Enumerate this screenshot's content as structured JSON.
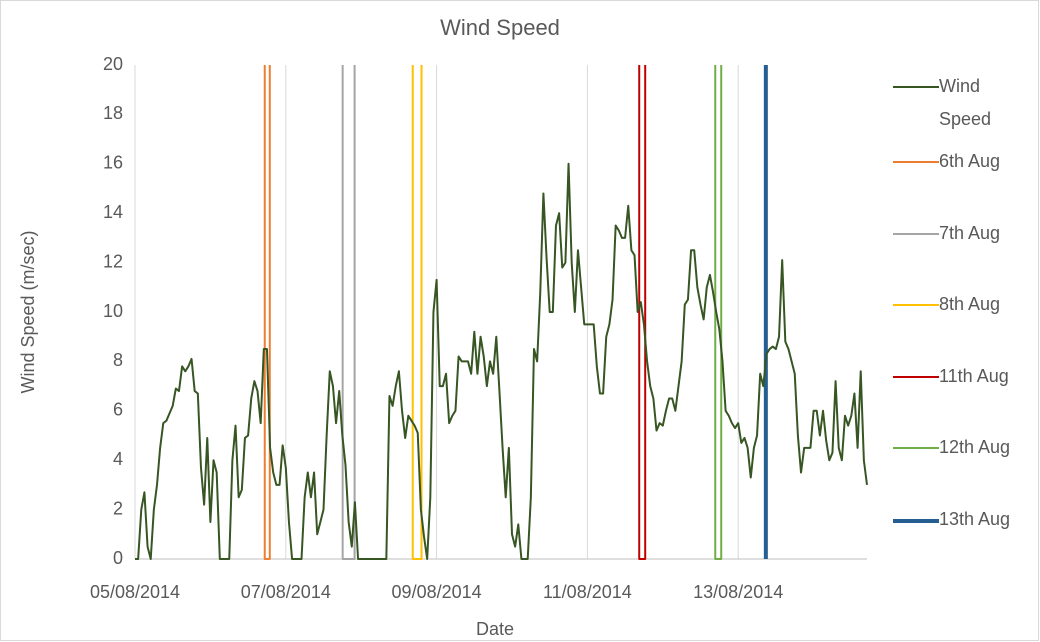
{
  "chart_data": {
    "type": "line",
    "title": "Wind Speed",
    "x_label": "Date",
    "y_label": "Wind Speed (m/sec)",
    "xlim": [
      0,
      233
    ],
    "xticks": [
      {
        "value": 0,
        "label": "05/08/2014"
      },
      {
        "value": 48,
        "label": "07/08/2014"
      },
      {
        "value": 96,
        "label": "09/08/2014"
      },
      {
        "value": 144,
        "label": "11/08/2014"
      },
      {
        "value": 192,
        "label": "13/08/2014"
      }
    ],
    "ylim": [
      0,
      20
    ],
    "yticks": [
      0,
      2,
      4,
      6,
      8,
      10,
      12,
      14,
      16,
      18,
      20
    ],
    "grid": true,
    "legend": "right",
    "series": [
      {
        "name": "Wind Speed",
        "color": "#375623",
        "width": 2,
        "x": [
          0,
          1,
          2,
          3,
          4,
          5,
          6,
          7,
          8,
          9,
          10,
          11,
          12,
          13,
          14,
          15,
          16,
          17,
          18,
          19,
          20,
          21,
          22,
          23,
          24,
          25,
          26,
          27,
          28,
          29,
          30,
          31,
          32,
          33,
          34,
          35,
          36,
          37,
          38,
          39,
          40,
          41,
          42,
          43,
          44,
          45,
          46,
          47,
          48,
          49,
          50,
          51,
          52,
          53,
          54,
          55,
          56,
          57,
          58,
          59,
          60,
          61,
          62,
          63,
          64,
          65,
          66,
          67,
          68,
          69,
          70,
          71,
          72,
          73,
          74,
          75,
          76,
          77,
          78,
          79,
          80,
          81,
          82,
          83,
          84,
          85,
          86,
          87,
          88,
          89,
          90,
          91,
          92,
          93,
          94,
          95,
          96,
          97,
          98,
          99,
          100,
          101,
          102,
          103,
          104,
          105,
          106,
          107,
          108,
          109,
          110,
          111,
          112,
          113,
          114,
          115,
          116,
          117,
          118,
          119,
          120,
          121,
          122,
          123,
          124,
          125,
          126,
          127,
          128,
          129,
          130,
          131,
          132,
          133,
          134,
          135,
          136,
          137,
          138,
          139,
          140,
          141,
          142,
          143,
          144,
          145,
          146,
          147,
          148,
          149,
          150,
          151,
          152,
          153,
          154,
          155,
          156,
          157,
          158,
          159,
          160,
          161,
          162,
          163,
          164,
          165,
          166,
          167,
          168,
          169,
          170,
          171,
          172,
          173,
          174,
          175,
          176,
          177,
          178,
          179,
          180,
          181,
          182,
          183,
          184,
          185,
          186,
          187,
          188,
          189,
          190,
          191,
          192,
          193,
          194,
          195,
          196,
          197,
          198,
          199,
          200,
          201,
          202,
          203,
          204,
          205,
          206,
          207,
          208,
          209,
          210,
          211,
          212,
          213,
          214,
          215,
          216,
          217,
          218,
          219,
          220,
          221,
          222,
          223,
          224,
          225,
          226,
          227,
          228,
          229,
          230,
          231,
          232,
          233
        ],
        "values": [
          0,
          0,
          2,
          2.7,
          0.5,
          0,
          2,
          3,
          4.5,
          5.5,
          5.6,
          5.9,
          6.2,
          6.9,
          6.8,
          7.8,
          7.6,
          7.8,
          8.1,
          6.8,
          6.7,
          3.7,
          2.2,
          4.9,
          1.5,
          4,
          3.5,
          0,
          0,
          0,
          0,
          4,
          5.4,
          2.5,
          2.8,
          4.9,
          5,
          6.5,
          7.2,
          6.8,
          5.5,
          8.5,
          8.5,
          4.5,
          3.5,
          3,
          3,
          4.6,
          3.7,
          1.5,
          0,
          0,
          0,
          0,
          2.5,
          3.5,
          2.5,
          3.5,
          1,
          1.5,
          2,
          5,
          7.6,
          7,
          5.5,
          6.8,
          5,
          3.8,
          1.5,
          0.5,
          2.3,
          0,
          0,
          0,
          0,
          0,
          0,
          0,
          0,
          0,
          0,
          6.6,
          6.2,
          7,
          7.6,
          6,
          4.9,
          5.8,
          5.6,
          5.4,
          5.1,
          2,
          0.9,
          0,
          2.5,
          10,
          11.3,
          7,
          7,
          7.5,
          5.5,
          5.8,
          6,
          8.2,
          8,
          8,
          8,
          7.5,
          9.2,
          7.5,
          9,
          8.2,
          7,
          8,
          7.5,
          9,
          6.8,
          4.5,
          2.5,
          4.5,
          1,
          0.5,
          1.4,
          0,
          0,
          0,
          2.5,
          8.5,
          8,
          10.8,
          14.8,
          12.2,
          10,
          10,
          13.5,
          14,
          11.8,
          12,
          16,
          12,
          10,
          12.5,
          11,
          9.5,
          9.5,
          9.5,
          9.5,
          7.8,
          6.7,
          6.7,
          9,
          9.5,
          10.5,
          13.5,
          13.3,
          13,
          13,
          14.3,
          12.5,
          12.3,
          10,
          10.4,
          9.5,
          8,
          7,
          6.5,
          5.2,
          5.5,
          5.4,
          6,
          6.5,
          6.5,
          6,
          7,
          8,
          10.3,
          10.5,
          12.5,
          12.5,
          11,
          10.3,
          9.7,
          11,
          11.5,
          10.8,
          10,
          9.3,
          8,
          6,
          5.8,
          5.5,
          5.3,
          5.5,
          4.7,
          4.9,
          4.5,
          3.3,
          4.5,
          5,
          7.5,
          7,
          8.3,
          8.5,
          8.6,
          8.5,
          9,
          12.1,
          8.8,
          8.5,
          8,
          7.5,
          5,
          3.5,
          4.5,
          4.5,
          4.5,
          6,
          6,
          5,
          6,
          4.8,
          4,
          4.3,
          7.2,
          4.5,
          4,
          5.8,
          5.4,
          5.8,
          6.7,
          4.5,
          7.6,
          4,
          3
        ]
      },
      {
        "name": "6th Aug",
        "color": "#ed7d31",
        "width": 2,
        "x": [
          41.3,
          41.3,
          42.9,
          42.9
        ],
        "values": [
          20,
          0,
          0,
          20
        ]
      },
      {
        "name": "7th Aug",
        "color": "#a5a5a5",
        "width": 2,
        "x": [
          66.1,
          66.1,
          69.9,
          69.9
        ],
        "values": [
          20,
          0,
          0,
          20
        ]
      },
      {
        "name": "8th Aug",
        "color": "#ffc000",
        "width": 2,
        "x": [
          88.4,
          88.4,
          91.2,
          91.2
        ],
        "values": [
          20,
          0,
          0,
          20
        ]
      },
      {
        "name": "11th Aug",
        "color": "#c00000",
        "width": 2,
        "x": [
          160.5,
          160.5,
          162.4,
          162.4
        ],
        "values": [
          20,
          0,
          0,
          20
        ]
      },
      {
        "name": "12th Aug",
        "color": "#70ad47",
        "width": 2,
        "x": [
          184.7,
          184.7,
          186.6,
          186.6
        ],
        "values": [
          20,
          0,
          0,
          20
        ]
      },
      {
        "name": "13th Aug",
        "color": "#255e91",
        "width": 4,
        "x": [
          200.8,
          200.8
        ],
        "values": [
          20,
          0
        ]
      }
    ]
  }
}
